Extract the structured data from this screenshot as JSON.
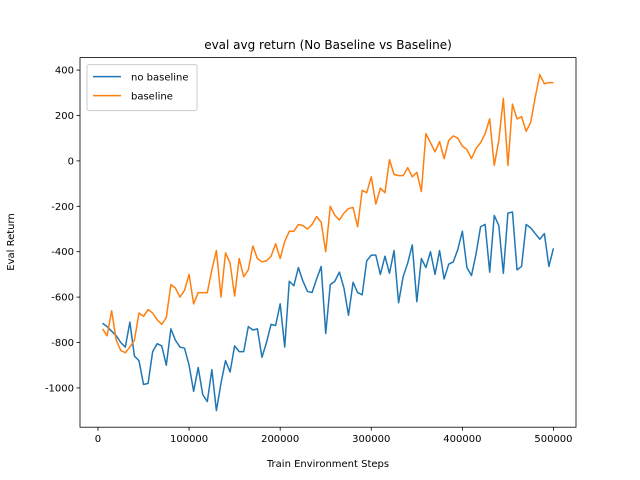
{
  "chart_data": {
    "type": "line",
    "title": "eval avg return (No Baseline vs Baseline)",
    "xlabel": "Train Environment Steps",
    "ylabel": "Eval Return",
    "x": [
      5000,
      10000,
      15000,
      20000,
      25000,
      30000,
      35000,
      40000,
      45000,
      50000,
      55000,
      60000,
      65000,
      70000,
      75000,
      80000,
      85000,
      90000,
      95000,
      100000,
      105000,
      110000,
      115000,
      120000,
      125000,
      130000,
      135000,
      140000,
      145000,
      150000,
      155000,
      160000,
      165000,
      170000,
      175000,
      180000,
      185000,
      190000,
      195000,
      200000,
      205000,
      210000,
      215000,
      220000,
      225000,
      230000,
      235000,
      240000,
      245000,
      250000,
      255000,
      260000,
      265000,
      270000,
      275000,
      280000,
      285000,
      290000,
      295000,
      300000,
      305000,
      310000,
      315000,
      320000,
      325000,
      330000,
      335000,
      340000,
      345000,
      350000,
      355000,
      360000,
      365000,
      370000,
      375000,
      380000,
      385000,
      390000,
      395000,
      400000,
      405000,
      410000,
      415000,
      420000,
      425000,
      430000,
      435000,
      440000,
      445000,
      450000,
      455000,
      460000,
      465000,
      470000,
      475000,
      480000,
      485000,
      490000,
      495000,
      500000
    ],
    "series": [
      {
        "name": "no baseline",
        "color": "#1f77b4",
        "values": [
          -715,
          -730,
          -750,
          -770,
          -800,
          -820,
          -710,
          -860,
          -880,
          -985,
          -980,
          -840,
          -805,
          -815,
          -900,
          -740,
          -790,
          -820,
          -825,
          -900,
          -1015,
          -910,
          -1030,
          -1060,
          -920,
          -1100,
          -980,
          -880,
          -930,
          -815,
          -840,
          -840,
          -730,
          -745,
          -740,
          -865,
          -800,
          -720,
          -725,
          -630,
          -820,
          -530,
          -550,
          -470,
          -530,
          -575,
          -580,
          -520,
          -465,
          -760,
          -545,
          -530,
          -490,
          -560,
          -680,
          -535,
          -580,
          -590,
          -440,
          -415,
          -415,
          -500,
          -420,
          -495,
          -395,
          -625,
          -510,
          -450,
          -370,
          -620,
          -430,
          -470,
          -400,
          -500,
          -395,
          -520,
          -455,
          -445,
          -390,
          -310,
          -470,
          -505,
          -410,
          -290,
          -280,
          -490,
          -240,
          -285,
          -495,
          -230,
          -225,
          -480,
          -465,
          -280,
          -295,
          -320,
          -345,
          -320,
          -465,
          -385
        ]
      },
      {
        "name": "baseline",
        "color": "#ff7f0e",
        "values": [
          -740,
          -770,
          -660,
          -790,
          -835,
          -845,
          -820,
          -790,
          -670,
          -685,
          -655,
          -670,
          -700,
          -720,
          -690,
          -545,
          -560,
          -600,
          -570,
          -500,
          -630,
          -580,
          -580,
          -580,
          -480,
          -395,
          -600,
          -405,
          -450,
          -595,
          -430,
          -510,
          -480,
          -375,
          -430,
          -445,
          -440,
          -420,
          -365,
          -430,
          -355,
          -310,
          -310,
          -280,
          -285,
          -300,
          -280,
          -245,
          -270,
          -400,
          -200,
          -240,
          -260,
          -230,
          -210,
          -205,
          -290,
          -130,
          -140,
          -70,
          -190,
          -120,
          -140,
          5,
          -60,
          -65,
          -65,
          -30,
          -70,
          -50,
          -135,
          120,
          80,
          40,
          85,
          10,
          90,
          110,
          100,
          65,
          50,
          10,
          55,
          80,
          120,
          185,
          -20,
          90,
          275,
          -20,
          250,
          185,
          195,
          130,
          170,
          280,
          380,
          340,
          345,
          345
        ]
      }
    ],
    "xlim": [
      -19750,
      524750
    ],
    "ylim": [
      -1173,
      455
    ],
    "xticks": [
      0,
      100000,
      200000,
      300000,
      400000,
      500000
    ],
    "yticks": [
      -1000,
      -800,
      -600,
      -400,
      -200,
      0,
      200,
      400
    ],
    "legend": "upper left"
  }
}
